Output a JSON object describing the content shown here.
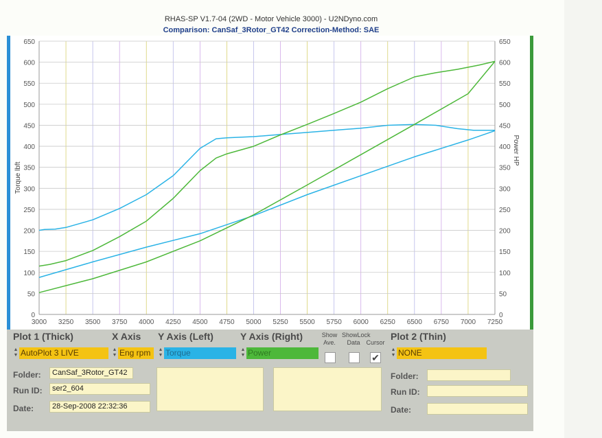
{
  "header": {
    "title": "RHAS-SP V1.7-04   (2WD - Motor Vehicle 3000) - U2NDyno.com",
    "subtitle": "Comparison: CanSaf_3Rotor_GT42    Correction-Method: SAE"
  },
  "chart_data": {
    "type": "line",
    "xlabel": "",
    "ylabel_left": "Torque lbft",
    "ylabel_right": "Power HP",
    "xlim": [
      3000,
      7250
    ],
    "ylim": [
      0,
      650
    ],
    "x_ticks": [
      "3000",
      "3250",
      "3500",
      "3750",
      "4000",
      "4250",
      "4500",
      "4750",
      "5000",
      "5250",
      "5500",
      "5750",
      "6000",
      "6250",
      "6500",
      "6750",
      "7000",
      "7250"
    ],
    "y_ticks": [
      "0",
      "50",
      "100",
      "150",
      "200",
      "250",
      "300",
      "350",
      "400",
      "450",
      "500",
      "550",
      "600",
      "650"
    ],
    "grid": true,
    "colors": {
      "torque": "#2ab3e6",
      "power": "#4db83a"
    },
    "series": [
      {
        "name": "Torque",
        "axis": "left",
        "color": "#2ab3e6",
        "x": [
          3000,
          3050,
          3150,
          3250,
          3500,
          3750,
          4000,
          4250,
          4500,
          4650,
          4750,
          5000,
          5250,
          5500,
          5750,
          6000,
          6250,
          6500,
          6700,
          6900,
          7050,
          7250
        ],
        "y": [
          200,
          202,
          203,
          207,
          225,
          252,
          285,
          330,
          395,
          418,
          420,
          423,
          428,
          433,
          438,
          443,
          450,
          452,
          450,
          442,
          438,
          438
        ]
      },
      {
        "name": "Power",
        "axis": "right",
        "color": "#4db83a",
        "x": [
          3000,
          3100,
          3250,
          3500,
          3750,
          4000,
          4250,
          4500,
          4650,
          4750,
          5000,
          5250,
          5500,
          5750,
          6000,
          6250,
          6500,
          6700,
          6900,
          7100,
          7250
        ],
        "y": [
          115,
          119,
          128,
          152,
          185,
          222,
          276,
          342,
          372,
          382,
          400,
          427,
          452,
          478,
          505,
          537,
          565,
          575,
          583,
          593,
          602
        ]
      },
      {
        "name": "Torque (thin)",
        "axis": "left",
        "color": "#2ab3e6",
        "x": [
          3000,
          3500,
          4000,
          4500,
          5000,
          5500,
          6000,
          6500,
          7000,
          7250
        ],
        "y": [
          88,
          125,
          160,
          192,
          235,
          285,
          330,
          375,
          415,
          437
        ]
      },
      {
        "name": "Power (thin)",
        "axis": "right",
        "color": "#4db83a",
        "x": [
          3000,
          3500,
          4000,
          4500,
          5000,
          5500,
          6000,
          6500,
          7000,
          7250
        ],
        "y": [
          52,
          85,
          125,
          175,
          237,
          308,
          380,
          452,
          525,
          602
        ]
      }
    ]
  },
  "controls": {
    "plot1_heading": "Plot 1 (Thick)",
    "xaxis_heading": "X Axis",
    "yleft_heading": "Y Axis (Left)",
    "yright_heading": "Y Axis (Right)",
    "show_ave": "Show Ave.",
    "show_data": "ShowLock Data",
    "lock_cursor": "Cursor",
    "plot2_heading": "Plot 2 (Thin)",
    "plot1_value": "AutoPlot 3 LIVE",
    "xaxis_value": "Eng rpm",
    "yleft_value": "Torque",
    "yright_value": "Power",
    "plot2_value": "NONE",
    "show_ave_checked": false,
    "show_data_checked": false,
    "lock_cursor_checked": true,
    "check_mark": "✔",
    "spin_up": "▲",
    "spin_down": "▼"
  },
  "fields": {
    "folder_label": "Folder:",
    "runid_label": "Run ID:",
    "date_label": "Date:",
    "folder_value": "CanSaf_3Rotor_GT42",
    "runid_value": "ser2_604",
    "date_value": "28-Sep-2008  22:32:36",
    "folder2_label": "Folder:",
    "runid2_label": "Run ID:",
    "date2_label": "Date:",
    "folder2_value": "",
    "runid2_value": "",
    "date2_value": ""
  }
}
